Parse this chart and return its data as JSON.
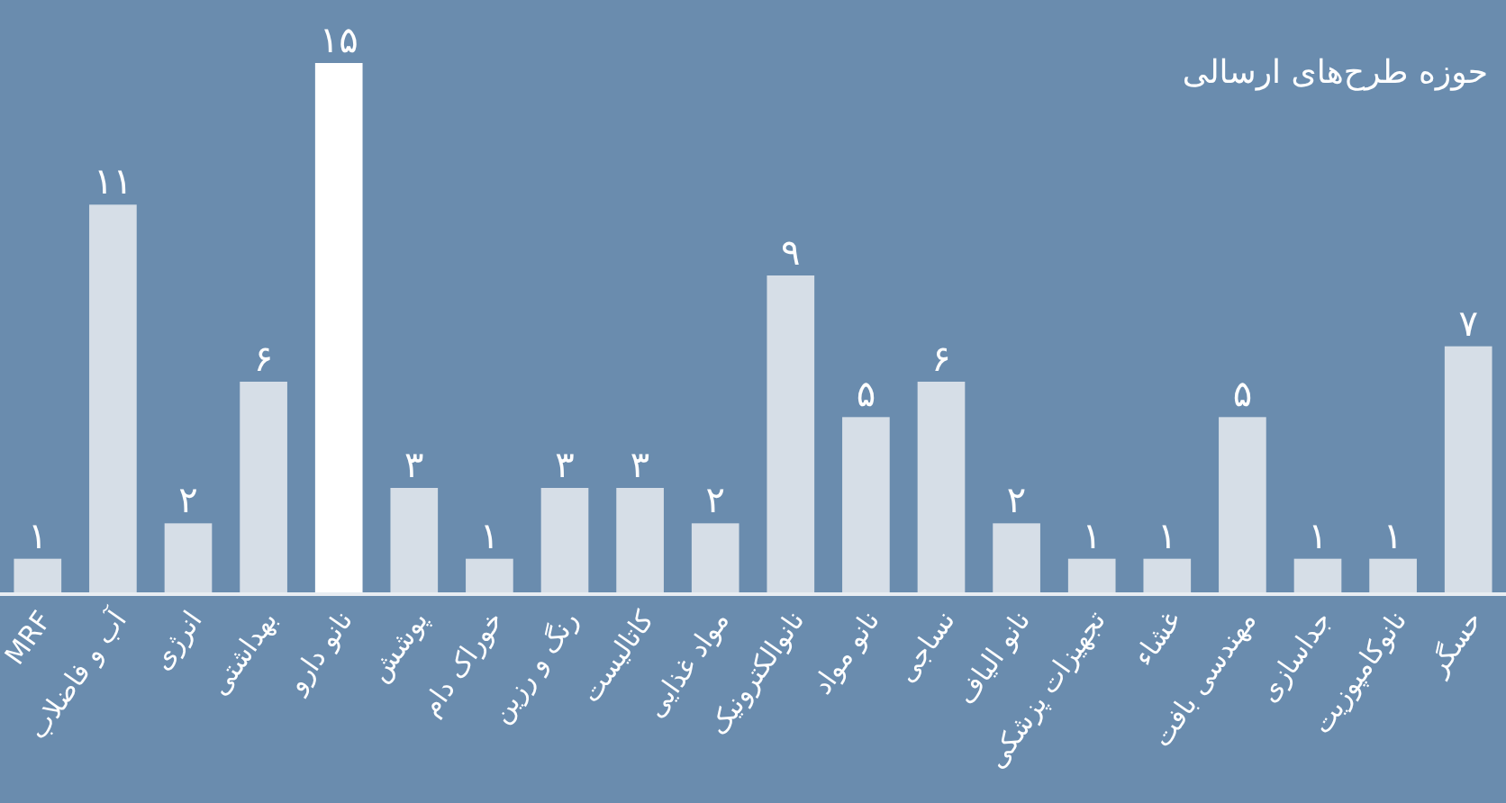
{
  "chart_data": {
    "type": "bar",
    "title": "حوزه طرح‌های ارسالی",
    "categories": [
      "MRF",
      "آب و فاضلاب",
      "انرژی",
      "بهداشتی",
      "نانو دارو",
      "پوشش",
      "خوراک دام",
      "رنگ و رزین",
      "کاتالیست",
      "مواد غذایی",
      "نانوالکترونیک",
      "نانو مواد",
      "نساجی",
      "نانو الیاف",
      "تجهیزات پزشکی",
      "غشاء",
      "مهندسی بافت",
      "جداسازی",
      "نانوکامپوزیت",
      "حسگر"
    ],
    "values": [
      1,
      11,
      2,
      6,
      15,
      3,
      1,
      3,
      3,
      2,
      9,
      5,
      6,
      2,
      1,
      1,
      5,
      1,
      1,
      7
    ],
    "value_labels": [
      "۱",
      "۱۱",
      "۲",
      "۶",
      "۱۵",
      "۳",
      "۱",
      "۳",
      "۳",
      "۲",
      "۹",
      "۵",
      "۶",
      "۲",
      "۱",
      "۱",
      "۵",
      "۱",
      "۱",
      "۷"
    ],
    "colors": [
      "#d6dee7",
      "#d6dee7",
      "#d6dee7",
      "#d6dee7",
      "#ffffff",
      "#d6dee7",
      "#d6dee7",
      "#d6dee7",
      "#d6dee7",
      "#d6dee7",
      "#d6dee7",
      "#d6dee7",
      "#d6dee7",
      "#d6dee7",
      "#d6dee7",
      "#d6dee7",
      "#d6dee7",
      "#d6dee7",
      "#d6dee7",
      "#d6dee7"
    ],
    "ylim": [
      0,
      15
    ],
    "tick_labels": "x"
  }
}
